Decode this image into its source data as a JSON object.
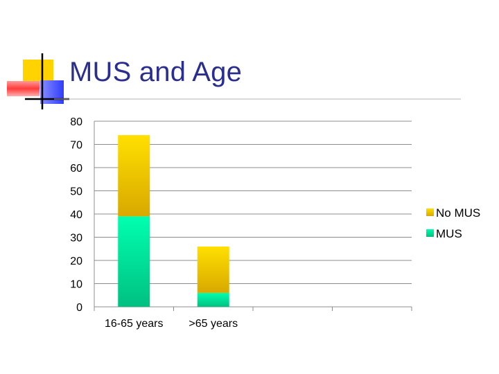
{
  "slide": {
    "title": "MUS and Age",
    "colors": {
      "title": "#2a2f8f",
      "deco_yellow": "#ffd200",
      "deco_red": "#ff3b3b",
      "deco_blue": "#2f3cff",
      "deco_lines": "#000000",
      "title_rule": "#b0b0b0"
    }
  },
  "chart_data": {
    "type": "bar",
    "stacked": true,
    "categories": [
      "16-65 years",
      ">65 years",
      "",
      ""
    ],
    "series": [
      {
        "name": "MUS",
        "values": [
          39,
          6,
          null,
          null
        ],
        "color_top": "#00ffb0",
        "color_bottom": "#00c080"
      },
      {
        "name": "No MUS",
        "values": [
          35,
          20,
          null,
          null
        ],
        "color_top": "#ffe000",
        "color_bottom": "#d8a800"
      }
    ],
    "ylim": [
      0,
      80
    ],
    "yticks": [
      0,
      10,
      20,
      30,
      40,
      50,
      60,
      70,
      80
    ],
    "grid": true,
    "legend": {
      "placement": "right",
      "order": [
        "No MUS",
        "MUS"
      ]
    },
    "title": "",
    "xlabel": "",
    "ylabel": ""
  }
}
